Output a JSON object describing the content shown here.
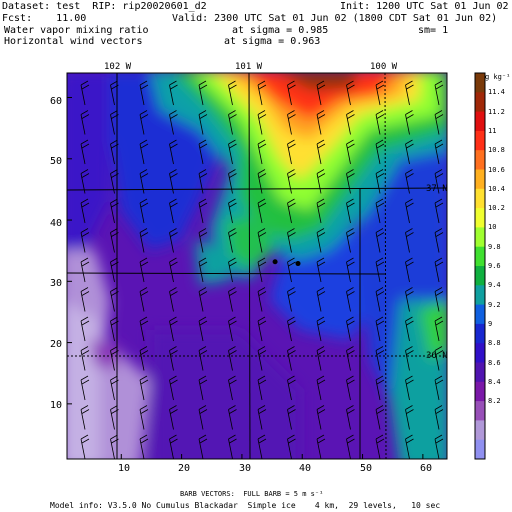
{
  "header": {
    "dataset": "Dataset: test  RIP: rip20020601_d2",
    "init": "Init: 1200 UTC Sat 01 Jun 02",
    "fcst": "Fcst:    11.00",
    "valid": "Valid: 2300 UTC Sat 01 Jun 02 (1800 CDT Sat 01 Jun 02)",
    "field1": "Water vapor mixing ratio",
    "field1_level": "at sigma = 0.985",
    "field1_sm": "sm= 1",
    "field2": "Horizontal wind vectors",
    "field2_level": "at sigma = 0.963"
  },
  "map": {
    "lon_labels": [
      "102 W",
      "101 W",
      "100 W"
    ],
    "lat_labels": [
      "37 N",
      "36 N"
    ],
    "y_ticks": [
      "60",
      "50",
      "40",
      "30",
      "20",
      "10"
    ],
    "x_ticks": [
      "10",
      "20",
      "30",
      "40",
      "50",
      "60"
    ],
    "grid_x_range": [
      1,
      64
    ],
    "grid_y_range": [
      1,
      64
    ],
    "markers": [
      [
        35.5,
        33.2
      ],
      [
        39.3,
        32.9
      ]
    ]
  },
  "colorbar": {
    "unit": "g kg⁻¹",
    "labels": [
      "11.4",
      "11.2",
      "11",
      "10.8",
      "10.6",
      "10.4",
      "10.2",
      "10",
      "9.8",
      "9.6",
      "9.4",
      "9.2",
      "9",
      "8.8",
      "8.6",
      "8.4",
      "8.2"
    ],
    "colors": [
      "#7a3a0a",
      "#a02808",
      "#e01010",
      "#ff3018",
      "#ff7020",
      "#ffb020",
      "#ffe030",
      "#f0ff30",
      "#a0ff30",
      "#40e030",
      "#10b040",
      "#10a0a0",
      "#1060e0",
      "#1828d0",
      "#3010c8",
      "#5014b0",
      "#7a18a8",
      "#9850b8",
      "#b098d8",
      "#9090f0"
    ]
  },
  "footer": {
    "barb_note": "BARB VECTORS:  FULL BARB = 5 m s⁻¹",
    "model_info": "Model info: V3.5.0 No Cumulus Blackadar  Simple ice    4 km,  29 levels,   10 sec"
  }
}
